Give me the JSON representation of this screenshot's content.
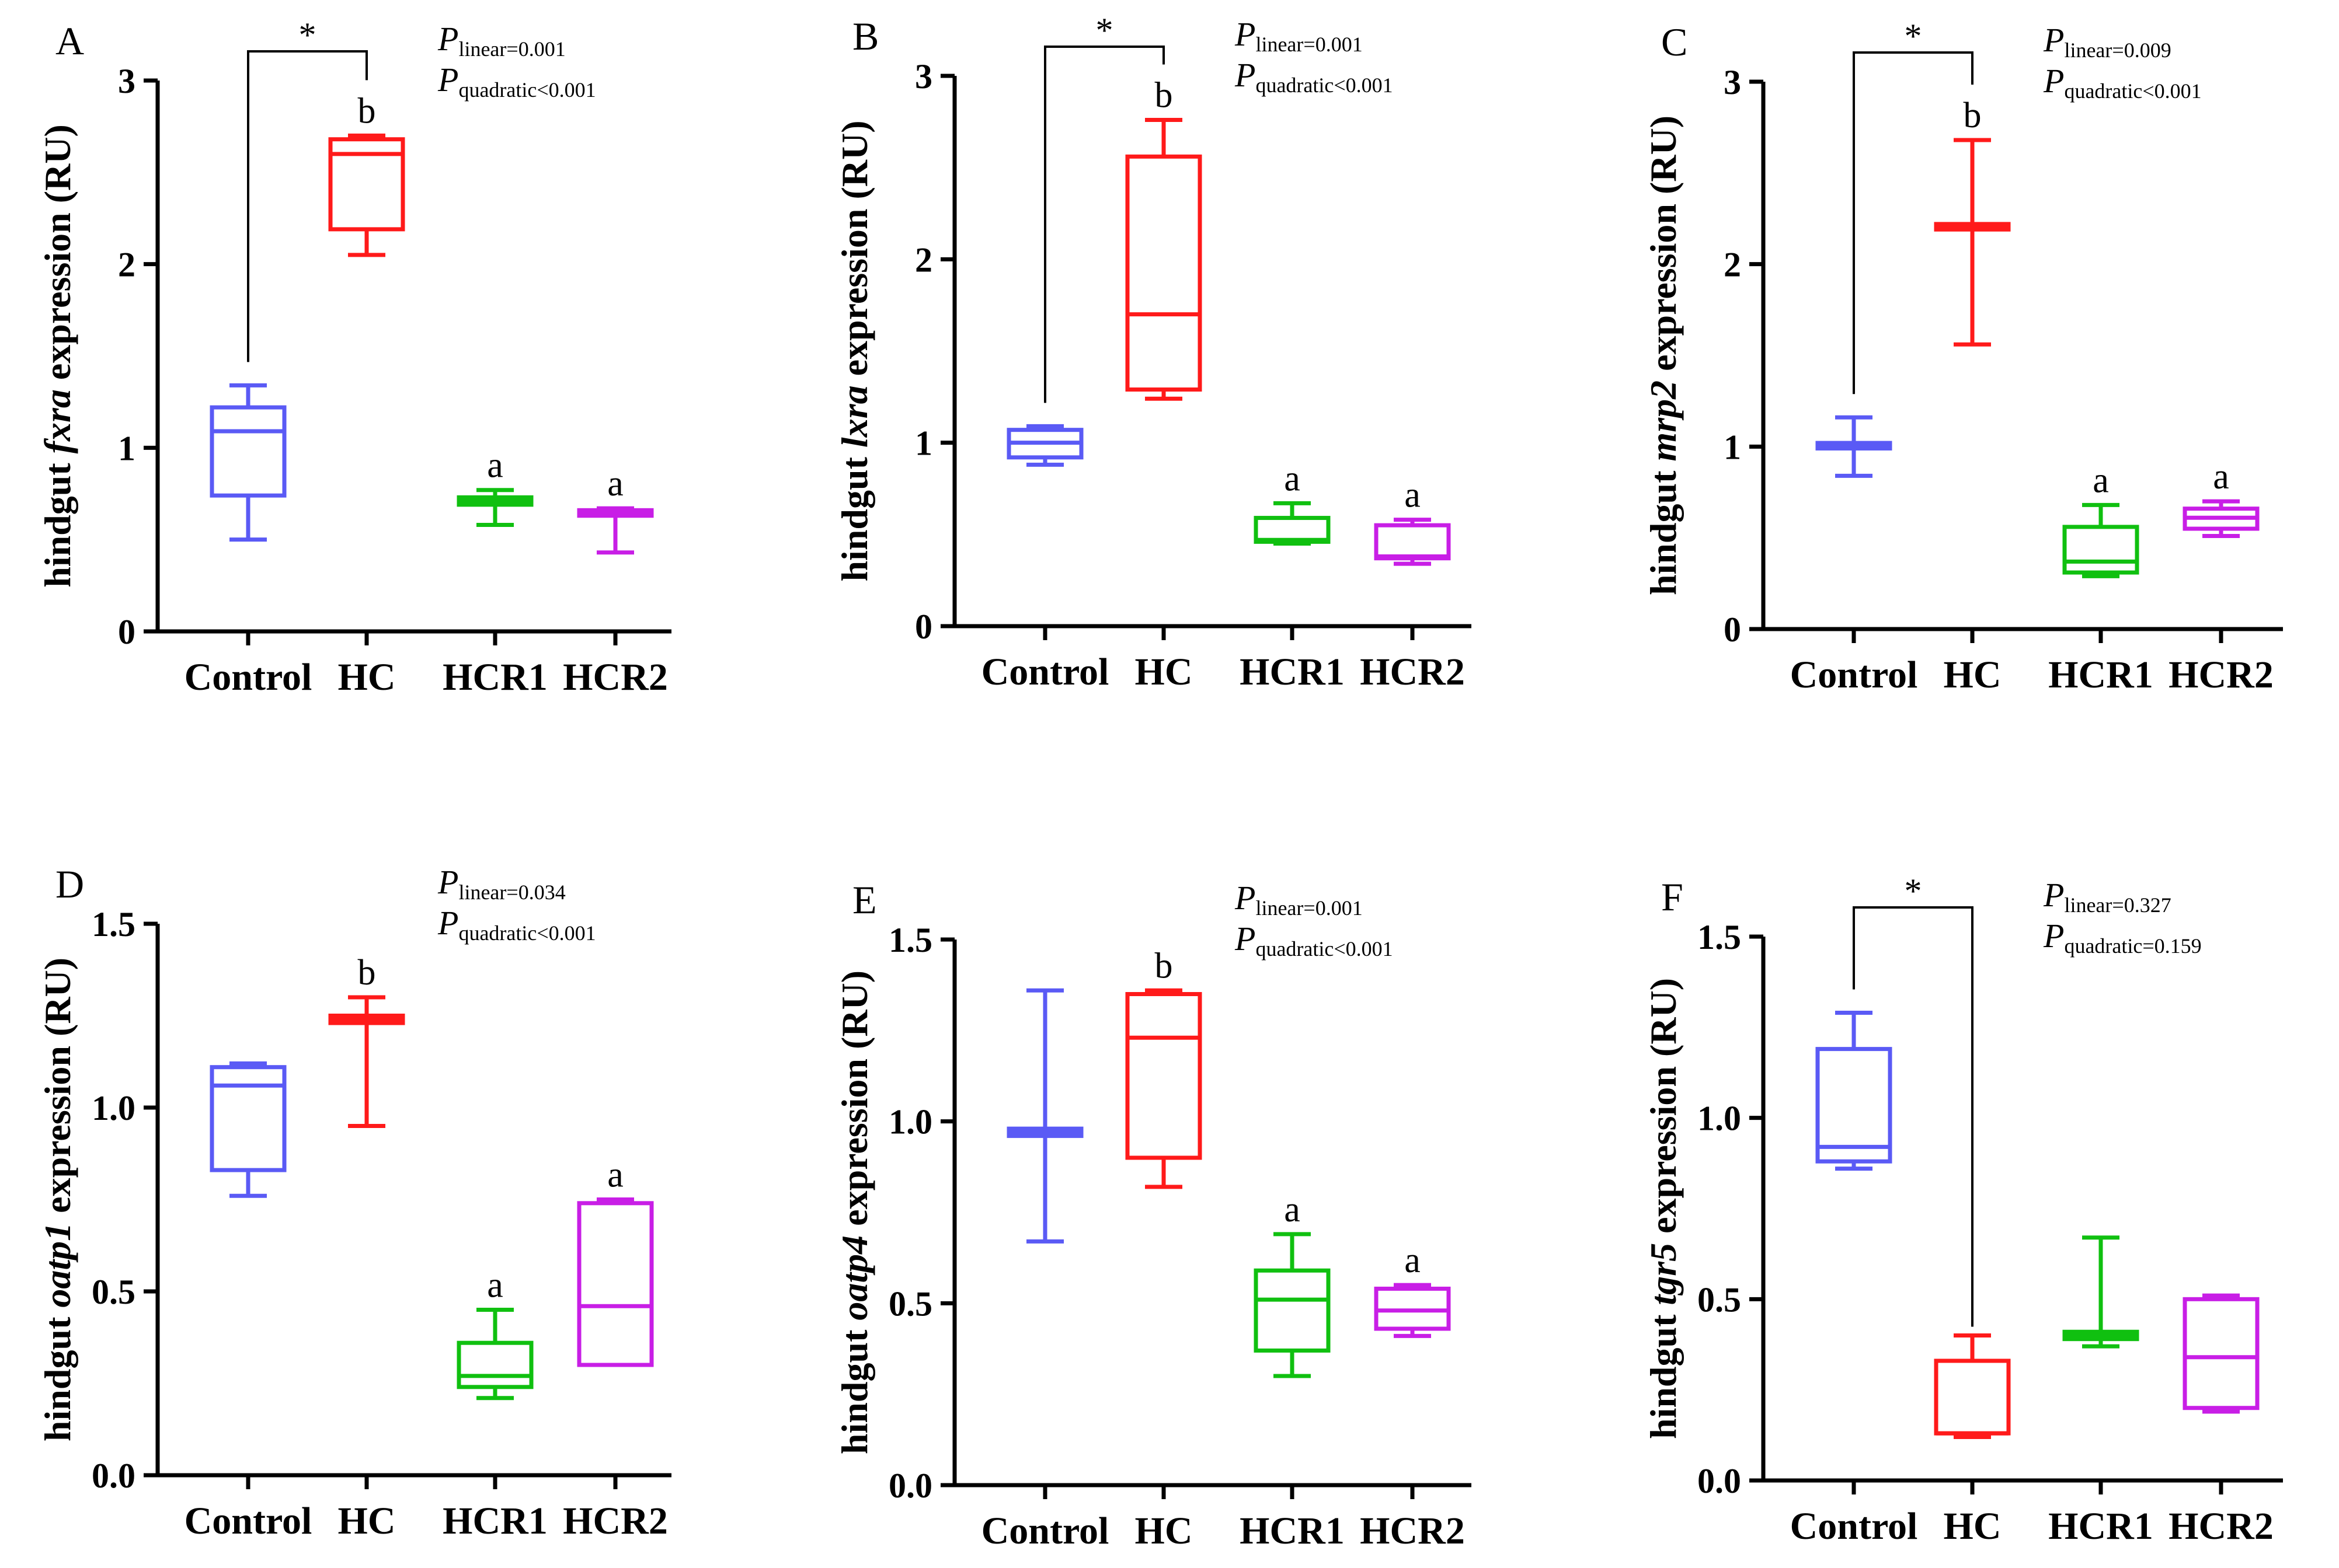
{
  "colors": {
    "Control": "#5a5af5",
    "HC": "#ff1a1a",
    "HCR1": "#10c010",
    "HCR2": "#c81ee6",
    "axis": "#000000"
  },
  "chart_data": [
    {
      "type": "box",
      "panel": "A",
      "ylabel_pre": "hindgut ",
      "ylabel_gene": "fxra",
      "ylabel_post": " expression (RU)",
      "ylim": [
        0,
        3
      ],
      "yticks": [
        "0",
        "1",
        "2",
        "3"
      ],
      "ytick_values": [
        0,
        1,
        2,
        3
      ],
      "categories": [
        "Control",
        "HC",
        "HCR1",
        "HCR2"
      ],
      "boxes": [
        {
          "min": 0.5,
          "q1": 0.74,
          "median": 1.09,
          "q3": 1.22,
          "max": 1.34,
          "sig": ""
        },
        {
          "min": 2.05,
          "q1": 2.19,
          "median": 2.6,
          "q3": 2.68,
          "max": 2.7,
          "sig": "b"
        },
        {
          "min": 0.58,
          "q1": 0.69,
          "median": 0.71,
          "q3": 0.73,
          "max": 0.77,
          "sig": "a"
        },
        {
          "min": 0.43,
          "q1": 0.63,
          "median": 0.64,
          "q3": 0.66,
          "max": 0.67,
          "sig": "a"
        }
      ],
      "bracket": {
        "from": 0,
        "to": 1,
        "label": "*"
      },
      "p_linear": {
        "symbol": "P",
        "sub": "linear",
        "value": "=0.001"
      },
      "p_quadratic": {
        "symbol": "P",
        "sub": "quadratic",
        "value": "<0.001"
      }
    },
    {
      "type": "box",
      "panel": "B",
      "ylabel_pre": "hindgut ",
      "ylabel_gene": "lxra",
      "ylabel_post": " expression (RU)",
      "ylim": [
        0,
        3
      ],
      "yticks": [
        "0",
        "1",
        "2",
        "3"
      ],
      "ytick_values": [
        0,
        1,
        2,
        3
      ],
      "categories": [
        "Control",
        "HC",
        "HCR1",
        "HCR2"
      ],
      "boxes": [
        {
          "min": 0.88,
          "q1": 0.92,
          "median": 1.0,
          "q3": 1.07,
          "max": 1.09,
          "sig": ""
        },
        {
          "min": 1.24,
          "q1": 1.29,
          "median": 1.7,
          "q3": 2.56,
          "max": 2.76,
          "sig": "b"
        },
        {
          "min": 0.45,
          "q1": 0.46,
          "median": 0.47,
          "q3": 0.59,
          "max": 0.67,
          "sig": "a"
        },
        {
          "min": 0.34,
          "q1": 0.37,
          "median": 0.38,
          "q3": 0.55,
          "max": 0.58,
          "sig": "a"
        }
      ],
      "bracket": {
        "from": 0,
        "to": 1,
        "label": "*"
      },
      "p_linear": {
        "symbol": "P",
        "sub": "linear",
        "value": "=0.001"
      },
      "p_quadratic": {
        "symbol": "P",
        "sub": "quadratic",
        "value": "<0.001"
      }
    },
    {
      "type": "box",
      "panel": "C",
      "ylabel_pre": "hindgut ",
      "ylabel_gene": "mrp2",
      "ylabel_post": " expression (RU)",
      "ylim": [
        0,
        3
      ],
      "yticks": [
        "0",
        "1",
        "2",
        "3"
      ],
      "ytick_values": [
        0,
        1,
        2,
        3
      ],
      "categories": [
        "Control",
        "HC",
        "HCR1",
        "HCR2"
      ],
      "boxes": [
        {
          "min": 0.84,
          "q1": 0.99,
          "median": 1.0,
          "q3": 1.02,
          "max": 1.16,
          "sig": ""
        },
        {
          "min": 1.56,
          "q1": 2.19,
          "median": 2.2,
          "q3": 2.22,
          "max": 2.68,
          "sig": "b"
        },
        {
          "min": 0.29,
          "q1": 0.31,
          "median": 0.37,
          "q3": 0.56,
          "max": 0.68,
          "sig": "a"
        },
        {
          "min": 0.51,
          "q1": 0.55,
          "median": 0.61,
          "q3": 0.66,
          "max": 0.7,
          "sig": "a"
        }
      ],
      "bracket": {
        "from": 0,
        "to": 1,
        "label": "*"
      },
      "p_linear": {
        "symbol": "P",
        "sub": "linear",
        "value": "=0.009"
      },
      "p_quadratic": {
        "symbol": "P",
        "sub": "quadratic",
        "value": "<0.001"
      }
    },
    {
      "type": "box",
      "panel": "D",
      "ylabel_pre": "hindgut ",
      "ylabel_gene": "oatp1",
      "ylabel_post": " expression (RU)",
      "ylim": [
        0,
        1.5
      ],
      "yticks": [
        "0.0",
        "0.5",
        "1.0",
        "1.5"
      ],
      "ytick_values": [
        0,
        0.5,
        1.0,
        1.5
      ],
      "categories": [
        "Control",
        "HC",
        "HCR1",
        "HCR2"
      ],
      "boxes": [
        {
          "min": 0.76,
          "q1": 0.83,
          "median": 1.06,
          "q3": 1.11,
          "max": 1.12,
          "sig": ""
        },
        {
          "min": 0.95,
          "q1": 1.23,
          "median": 1.24,
          "q3": 1.25,
          "max": 1.3,
          "sig": "b"
        },
        {
          "min": 0.21,
          "q1": 0.24,
          "median": 0.27,
          "q3": 0.36,
          "max": 0.45,
          "sig": "a"
        },
        {
          "min": 0.3,
          "q1": 0.3,
          "median": 0.46,
          "q3": 0.74,
          "max": 0.75,
          "sig": "a"
        }
      ],
      "bracket": null,
      "p_linear": {
        "symbol": "P",
        "sub": "linear",
        "value": "=0.034"
      },
      "p_quadratic": {
        "symbol": "P",
        "sub": "quadratic",
        "value": "<0.001"
      }
    },
    {
      "type": "box",
      "panel": "E",
      "ylabel_pre": "hindgut ",
      "ylabel_gene": "oatp4",
      "ylabel_post": " expression (RU)",
      "ylim": [
        0,
        1.5
      ],
      "yticks": [
        "0.0",
        "0.5",
        "1.0",
        "1.5"
      ],
      "ytick_values": [
        0,
        0.5,
        1.0,
        1.5
      ],
      "categories": [
        "Control",
        "HC",
        "HCR1",
        "HCR2"
      ],
      "boxes": [
        {
          "min": 0.67,
          "q1": 0.96,
          "median": 0.97,
          "q3": 0.98,
          "max": 1.36,
          "sig": ""
        },
        {
          "min": 0.82,
          "q1": 0.9,
          "median": 1.23,
          "q3": 1.35,
          "max": 1.36,
          "sig": "b"
        },
        {
          "min": 0.3,
          "q1": 0.37,
          "median": 0.51,
          "q3": 0.59,
          "max": 0.69,
          "sig": "a"
        },
        {
          "min": 0.41,
          "q1": 0.43,
          "median": 0.48,
          "q3": 0.54,
          "max": 0.55,
          "sig": "a"
        }
      ],
      "bracket": null,
      "p_linear": {
        "symbol": "P",
        "sub": "linear",
        "value": "=0.001"
      },
      "p_quadratic": {
        "symbol": "P",
        "sub": "quadratic",
        "value": "<0.001"
      }
    },
    {
      "type": "box",
      "panel": "F",
      "ylabel_pre": "hindgut ",
      "ylabel_gene": "tgr5",
      "ylabel_post": " expression (RU)",
      "ylim": [
        0,
        1.5
      ],
      "yticks": [
        "0.0",
        "0.5",
        "1.0",
        "1.5"
      ],
      "ytick_values": [
        0,
        0.5,
        1.0,
        1.5
      ],
      "categories": [
        "Control",
        "HC",
        "HCR1",
        "HCR2"
      ],
      "boxes": [
        {
          "min": 0.86,
          "q1": 0.88,
          "median": 0.92,
          "q3": 1.19,
          "max": 1.29,
          "sig": ""
        },
        {
          "min": 0.12,
          "q1": 0.13,
          "median": 0.13,
          "q3": 0.33,
          "max": 0.4,
          "sig": ""
        },
        {
          "min": 0.37,
          "q1": 0.39,
          "median": 0.4,
          "q3": 0.41,
          "max": 0.67,
          "sig": ""
        },
        {
          "min": 0.19,
          "q1": 0.2,
          "median": 0.34,
          "q3": 0.5,
          "max": 0.51,
          "sig": ""
        }
      ],
      "bracket": {
        "from": 0,
        "to": 1,
        "label": "*"
      },
      "p_linear": {
        "symbol": "P",
        "sub": "linear",
        "value": "=0.327"
      },
      "p_quadratic": {
        "symbol": "P",
        "sub": "quadratic",
        "value": "=0.159"
      }
    }
  ]
}
